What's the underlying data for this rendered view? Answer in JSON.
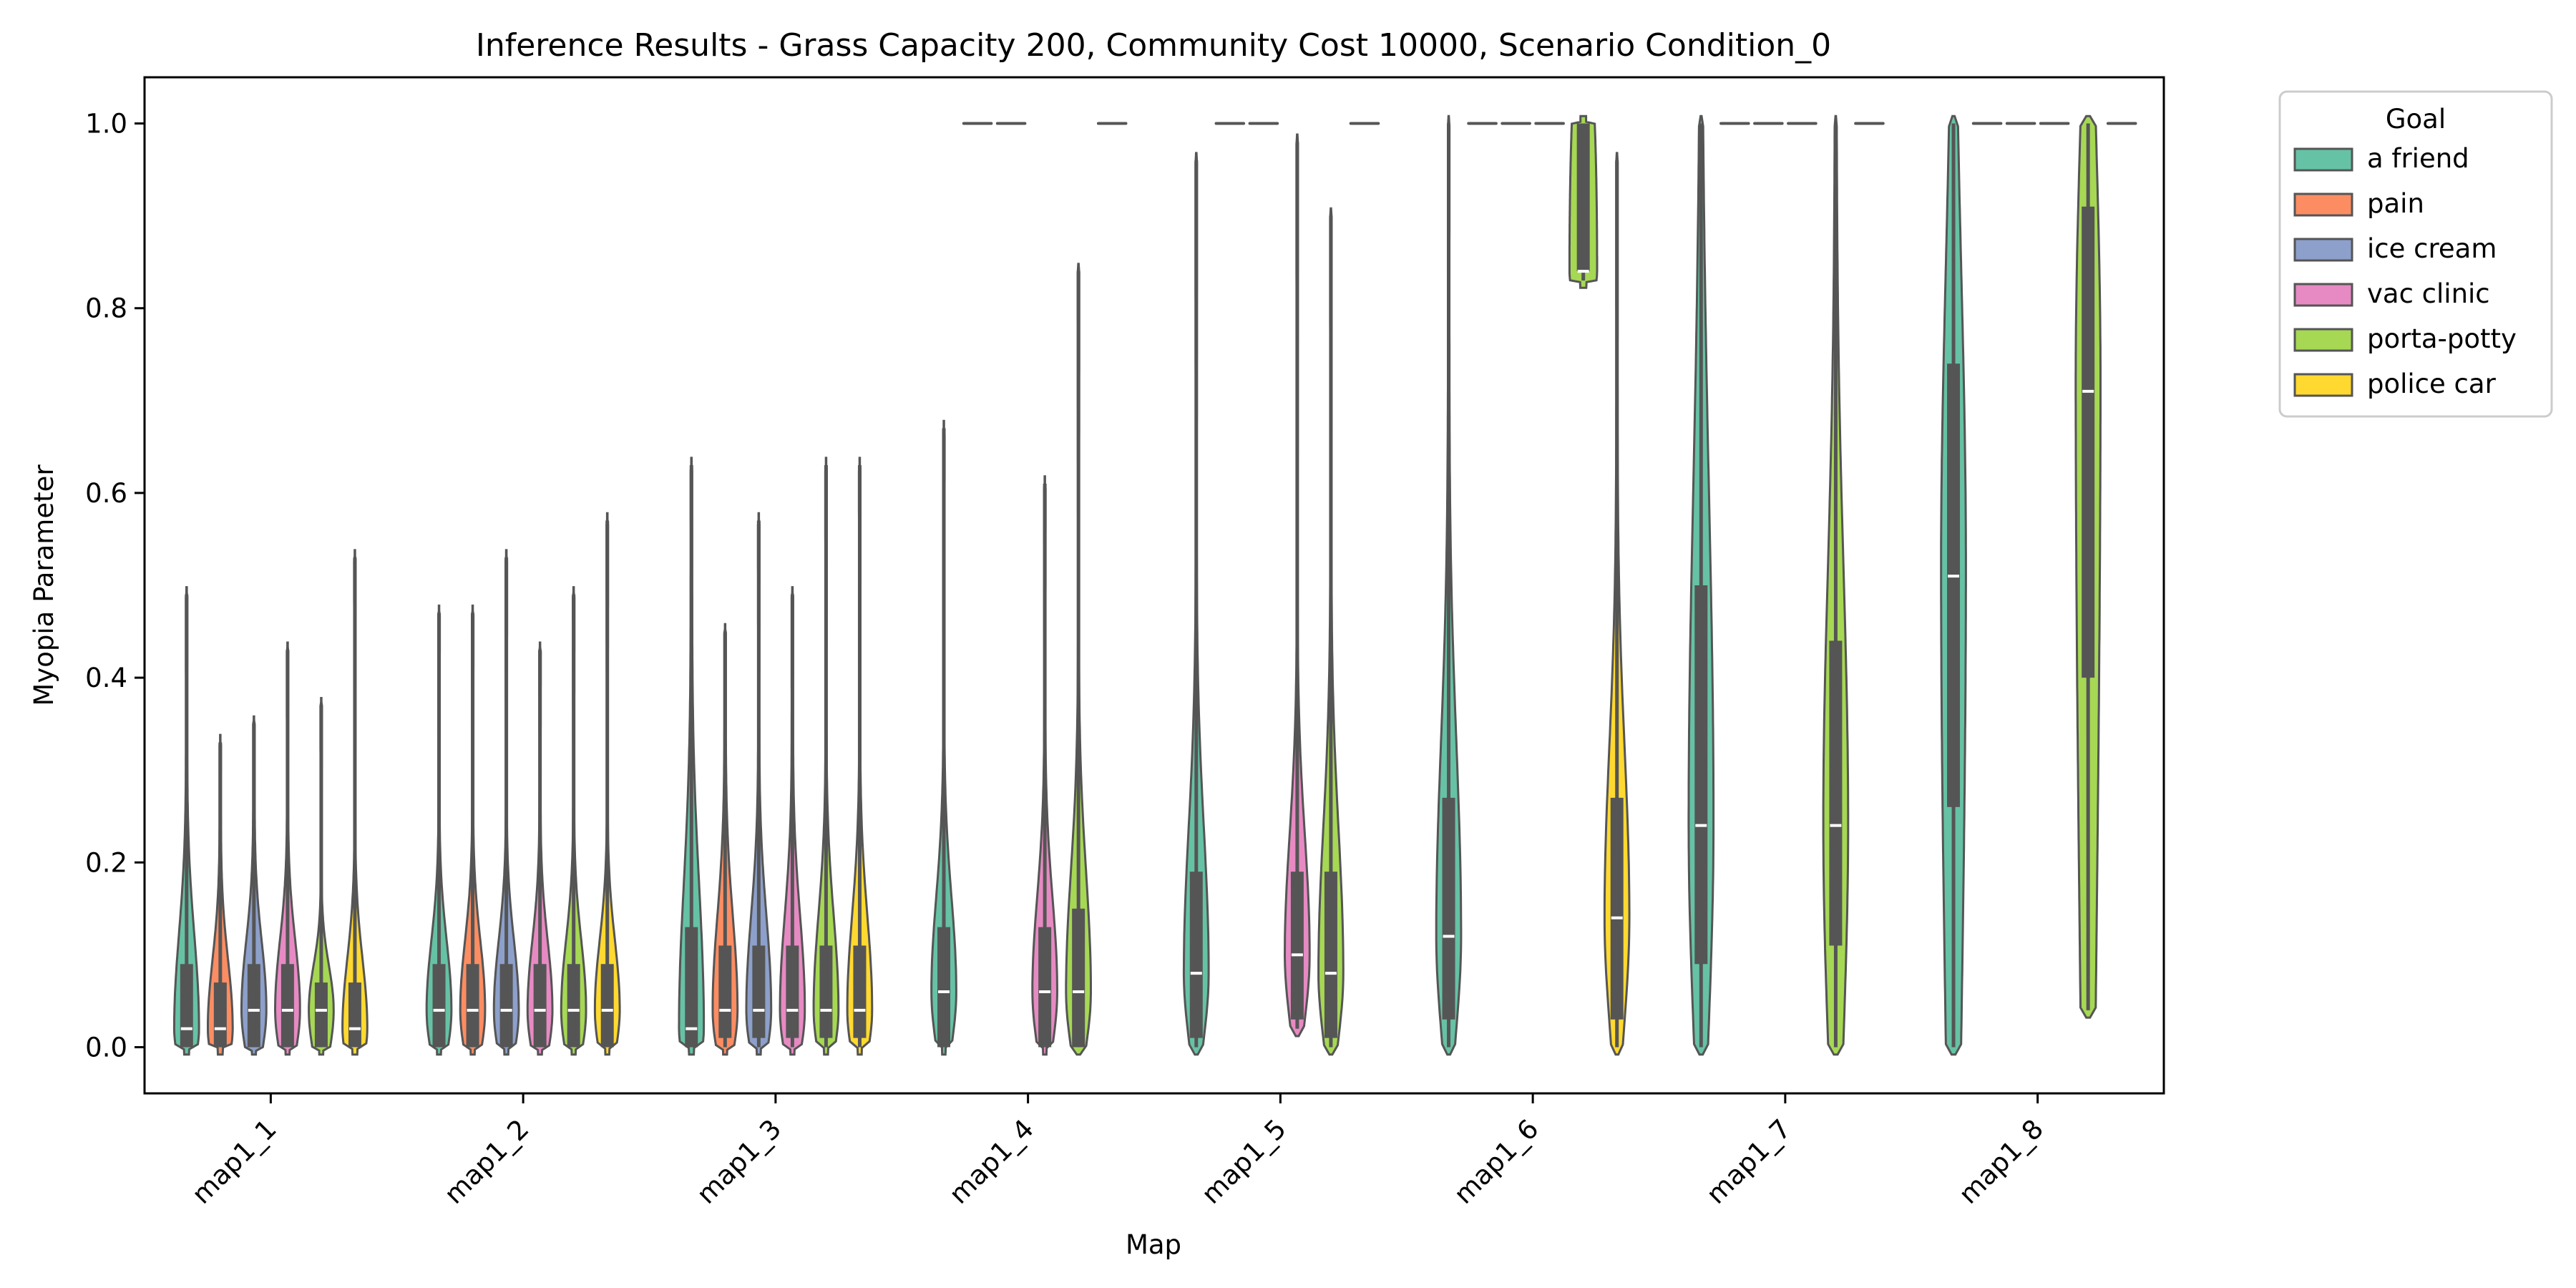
{
  "chart_data": {
    "type": "violin",
    "title": "Inference Results - Grass Capacity 200, Community Cost 10000, Scenario Condition_0",
    "xlabel": "Map",
    "ylabel": "Myopia Parameter",
    "categories": [
      "map1_1",
      "map1_2",
      "map1_3",
      "map1_4",
      "map1_5",
      "map1_6",
      "map1_7",
      "map1_8"
    ],
    "ylim": [
      -0.05,
      1.05
    ],
    "yticks": [
      "0.0",
      "0.2",
      "0.4",
      "0.6",
      "0.8",
      "1.0"
    ],
    "legend": {
      "title": "Goal",
      "position": "outside-right"
    },
    "series": [
      {
        "name": "a friend",
        "color": "#66c2a5",
        "stats": [
          {
            "min": 0.0,
            "q1": 0.0,
            "median": 0.02,
            "q3": 0.09,
            "max": 0.49
          },
          {
            "min": 0.0,
            "q1": 0.0,
            "median": 0.04,
            "q3": 0.09,
            "max": 0.47
          },
          {
            "min": 0.0,
            "q1": 0.0,
            "median": 0.02,
            "q3": 0.13,
            "max": 0.63
          },
          {
            "min": 0.0,
            "q1": 0.0,
            "median": 0.06,
            "q3": 0.13,
            "max": 0.67
          },
          {
            "min": 0.0,
            "q1": 0.01,
            "median": 0.08,
            "q3": 0.19,
            "max": 0.96
          },
          {
            "min": 0.0,
            "q1": 0.03,
            "median": 0.12,
            "q3": 0.27,
            "max": 1.0
          },
          {
            "min": 0.0,
            "q1": 0.09,
            "median": 0.24,
            "q3": 0.5,
            "max": 1.0
          },
          {
            "min": 0.0,
            "q1": 0.26,
            "median": 0.51,
            "q3": 0.74,
            "max": 1.0
          }
        ]
      },
      {
        "name": "pain",
        "color": "#fc8d62",
        "stats": [
          {
            "min": 0.0,
            "q1": 0.0,
            "median": 0.02,
            "q3": 0.07,
            "max": 0.33
          },
          {
            "min": 0.0,
            "q1": 0.0,
            "median": 0.04,
            "q3": 0.09,
            "max": 0.47
          },
          {
            "min": 0.0,
            "q1": 0.01,
            "median": 0.04,
            "q3": 0.11,
            "max": 0.45
          },
          {
            "min": 1.0,
            "q1": 1.0,
            "median": 1.0,
            "q3": 1.0,
            "max": 1.0
          },
          {
            "min": 1.0,
            "q1": 1.0,
            "median": 1.0,
            "q3": 1.0,
            "max": 1.0
          },
          {
            "min": 1.0,
            "q1": 1.0,
            "median": 1.0,
            "q3": 1.0,
            "max": 1.0
          },
          {
            "min": 1.0,
            "q1": 1.0,
            "median": 1.0,
            "q3": 1.0,
            "max": 1.0
          },
          {
            "min": 1.0,
            "q1": 1.0,
            "median": 1.0,
            "q3": 1.0,
            "max": 1.0
          }
        ]
      },
      {
        "name": "ice cream",
        "color": "#8da0cb",
        "stats": [
          {
            "min": 0.0,
            "q1": 0.0,
            "median": 0.04,
            "q3": 0.09,
            "max": 0.35
          },
          {
            "min": 0.0,
            "q1": 0.0,
            "median": 0.04,
            "q3": 0.09,
            "max": 0.53
          },
          {
            "min": 0.0,
            "q1": 0.01,
            "median": 0.04,
            "q3": 0.11,
            "max": 0.57
          },
          {
            "min": 1.0,
            "q1": 1.0,
            "median": 1.0,
            "q3": 1.0,
            "max": 1.0
          },
          {
            "min": 1.0,
            "q1": 1.0,
            "median": 1.0,
            "q3": 1.0,
            "max": 1.0
          },
          {
            "min": 1.0,
            "q1": 1.0,
            "median": 1.0,
            "q3": 1.0,
            "max": 1.0
          },
          {
            "min": 1.0,
            "q1": 1.0,
            "median": 1.0,
            "q3": 1.0,
            "max": 1.0
          },
          {
            "min": 1.0,
            "q1": 1.0,
            "median": 1.0,
            "q3": 1.0,
            "max": 1.0
          }
        ]
      },
      {
        "name": "vac clinic",
        "color": "#e78ac3",
        "stats": [
          {
            "min": 0.0,
            "q1": 0.0,
            "median": 0.04,
            "q3": 0.09,
            "max": 0.43
          },
          {
            "min": 0.0,
            "q1": 0.0,
            "median": 0.04,
            "q3": 0.09,
            "max": 0.43
          },
          {
            "min": 0.0,
            "q1": 0.01,
            "median": 0.04,
            "q3": 0.11,
            "max": 0.49
          },
          {
            "min": 0.0,
            "q1": 0.0,
            "median": 0.06,
            "q3": 0.13,
            "max": 0.61
          },
          {
            "min": 0.02,
            "q1": 0.03,
            "median": 0.1,
            "q3": 0.19,
            "max": 0.98
          },
          {
            "min": 1.0,
            "q1": 1.0,
            "median": 1.0,
            "q3": 1.0,
            "max": 1.0
          },
          {
            "min": 1.0,
            "q1": 1.0,
            "median": 1.0,
            "q3": 1.0,
            "max": 1.0
          },
          {
            "min": 1.0,
            "q1": 1.0,
            "median": 1.0,
            "q3": 1.0,
            "max": 1.0
          }
        ]
      },
      {
        "name": "porta-potty",
        "color": "#a6d854",
        "stats": [
          {
            "min": 0.0,
            "q1": 0.0,
            "median": 0.04,
            "q3": 0.07,
            "max": 0.37
          },
          {
            "min": 0.0,
            "q1": 0.0,
            "median": 0.04,
            "q3": 0.09,
            "max": 0.49
          },
          {
            "min": 0.0,
            "q1": 0.01,
            "median": 0.04,
            "q3": 0.11,
            "max": 0.63
          },
          {
            "min": 0.0,
            "q1": 0.0,
            "median": 0.06,
            "q3": 0.15,
            "max": 0.84
          },
          {
            "min": 0.0,
            "q1": 0.01,
            "median": 0.08,
            "q3": 0.19,
            "max": 0.9
          },
          {
            "min": 0.83,
            "q1": 0.84,
            "median": 0.84,
            "q3": 1.0,
            "max": 1.0
          },
          {
            "min": 0.0,
            "q1": 0.11,
            "median": 0.24,
            "q3": 0.44,
            "max": 1.0
          },
          {
            "min": 0.04,
            "q1": 0.4,
            "median": 0.71,
            "q3": 0.91,
            "max": 1.0
          }
        ]
      },
      {
        "name": "police car",
        "color": "#ffd92f",
        "stats": [
          {
            "min": 0.0,
            "q1": 0.0,
            "median": 0.02,
            "q3": 0.07,
            "max": 0.53
          },
          {
            "min": 0.0,
            "q1": 0.0,
            "median": 0.04,
            "q3": 0.09,
            "max": 0.57
          },
          {
            "min": 0.0,
            "q1": 0.01,
            "median": 0.04,
            "q3": 0.11,
            "max": 0.63
          },
          {
            "min": 1.0,
            "q1": 1.0,
            "median": 1.0,
            "q3": 1.0,
            "max": 1.0
          },
          {
            "min": 1.0,
            "q1": 1.0,
            "median": 1.0,
            "q3": 1.0,
            "max": 1.0
          },
          {
            "min": 0.0,
            "q1": 0.03,
            "median": 0.14,
            "q3": 0.27,
            "max": 0.96
          },
          {
            "min": 1.0,
            "q1": 1.0,
            "median": 1.0,
            "q3": 1.0,
            "max": 1.0
          },
          {
            "min": 1.0,
            "q1": 1.0,
            "median": 1.0,
            "q3": 1.0,
            "max": 1.0
          }
        ]
      }
    ]
  }
}
